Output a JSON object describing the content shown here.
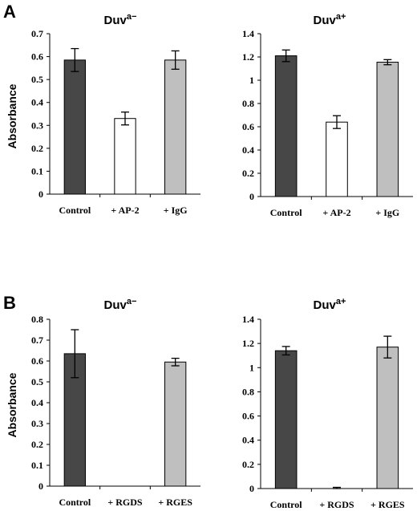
{
  "panels": [
    {
      "letter": "A"
    },
    {
      "letter": "B"
    }
  ],
  "colors": {
    "control": "#474747",
    "treatment": "#ffffff",
    "reference": "#bfbfbf"
  },
  "chart_data": [
    {
      "panel": "A",
      "type": "bar",
      "title_main": "Duv",
      "title_sup": "a−",
      "ylabel": "Absorbance",
      "ylim": [
        0,
        0.7
      ],
      "yticks": [
        0,
        0.1,
        0.2,
        0.3,
        0.4,
        0.5,
        0.6,
        0.7
      ],
      "ytick_labels": [
        "0",
        "0.1",
        "0.2",
        "0.3",
        "0.4",
        "0.5",
        "0.6",
        "0.7"
      ],
      "categories": [
        "Control",
        "+ AP-2",
        "+ IgG"
      ],
      "values": [
        0.585,
        0.33,
        0.585
      ],
      "errors": [
        0.05,
        0.028,
        0.04
      ],
      "bar_colors": [
        "control",
        "treatment",
        "reference"
      ]
    },
    {
      "panel": "A",
      "type": "bar",
      "title_main": "Duv",
      "title_sup": "a+",
      "ylabel": "",
      "ylim": [
        0,
        1.4
      ],
      "yticks": [
        0,
        0.2,
        0.4,
        0.6,
        0.8,
        1.0,
        1.2,
        1.4
      ],
      "ytick_labels": [
        "0",
        "0.2",
        "0.4",
        "0.6",
        "0.8",
        "1",
        "1.2",
        "1.4"
      ],
      "categories": [
        "Control",
        "+ AP-2",
        "+ IgG"
      ],
      "values": [
        1.21,
        0.64,
        1.155
      ],
      "errors": [
        0.05,
        0.055,
        0.022
      ],
      "bar_colors": [
        "control",
        "treatment",
        "reference"
      ]
    },
    {
      "panel": "B",
      "type": "bar",
      "title_main": "Duv",
      "title_sup": "a−",
      "ylabel": "Absorbance",
      "ylim": [
        0,
        0.8
      ],
      "yticks": [
        0,
        0.1,
        0.2,
        0.3,
        0.4,
        0.5,
        0.6,
        0.7,
        0.8
      ],
      "ytick_labels": [
        "0",
        "0.1",
        "0.2",
        "0.3",
        "0.4",
        "0.5",
        "0.6",
        "0.7",
        "0.8"
      ],
      "categories": [
        "Control",
        "+ RGDS",
        "+ RGES"
      ],
      "values": [
        0.635,
        0,
        0.595
      ],
      "errors": [
        0.115,
        0,
        0.018
      ],
      "bar_colors": [
        "control",
        "treatment",
        "reference"
      ]
    },
    {
      "panel": "B",
      "type": "bar",
      "title_main": "Duv",
      "title_sup": "a+",
      "ylabel": "",
      "ylim": [
        0,
        1.4
      ],
      "yticks": [
        0,
        0.2,
        0.4,
        0.6,
        0.8,
        1.0,
        1.2,
        1.4
      ],
      "ytick_labels": [
        "0",
        "0.2",
        "0.4",
        "0.6",
        "0.8",
        "1",
        "1.2",
        "1.4"
      ],
      "categories": [
        "Control",
        "+ RGDS",
        "+ RGES"
      ],
      "values": [
        1.14,
        0.005,
        1.17
      ],
      "errors": [
        0.035,
        0.005,
        0.09
      ],
      "bar_colors": [
        "control",
        "treatment",
        "reference"
      ]
    }
  ]
}
